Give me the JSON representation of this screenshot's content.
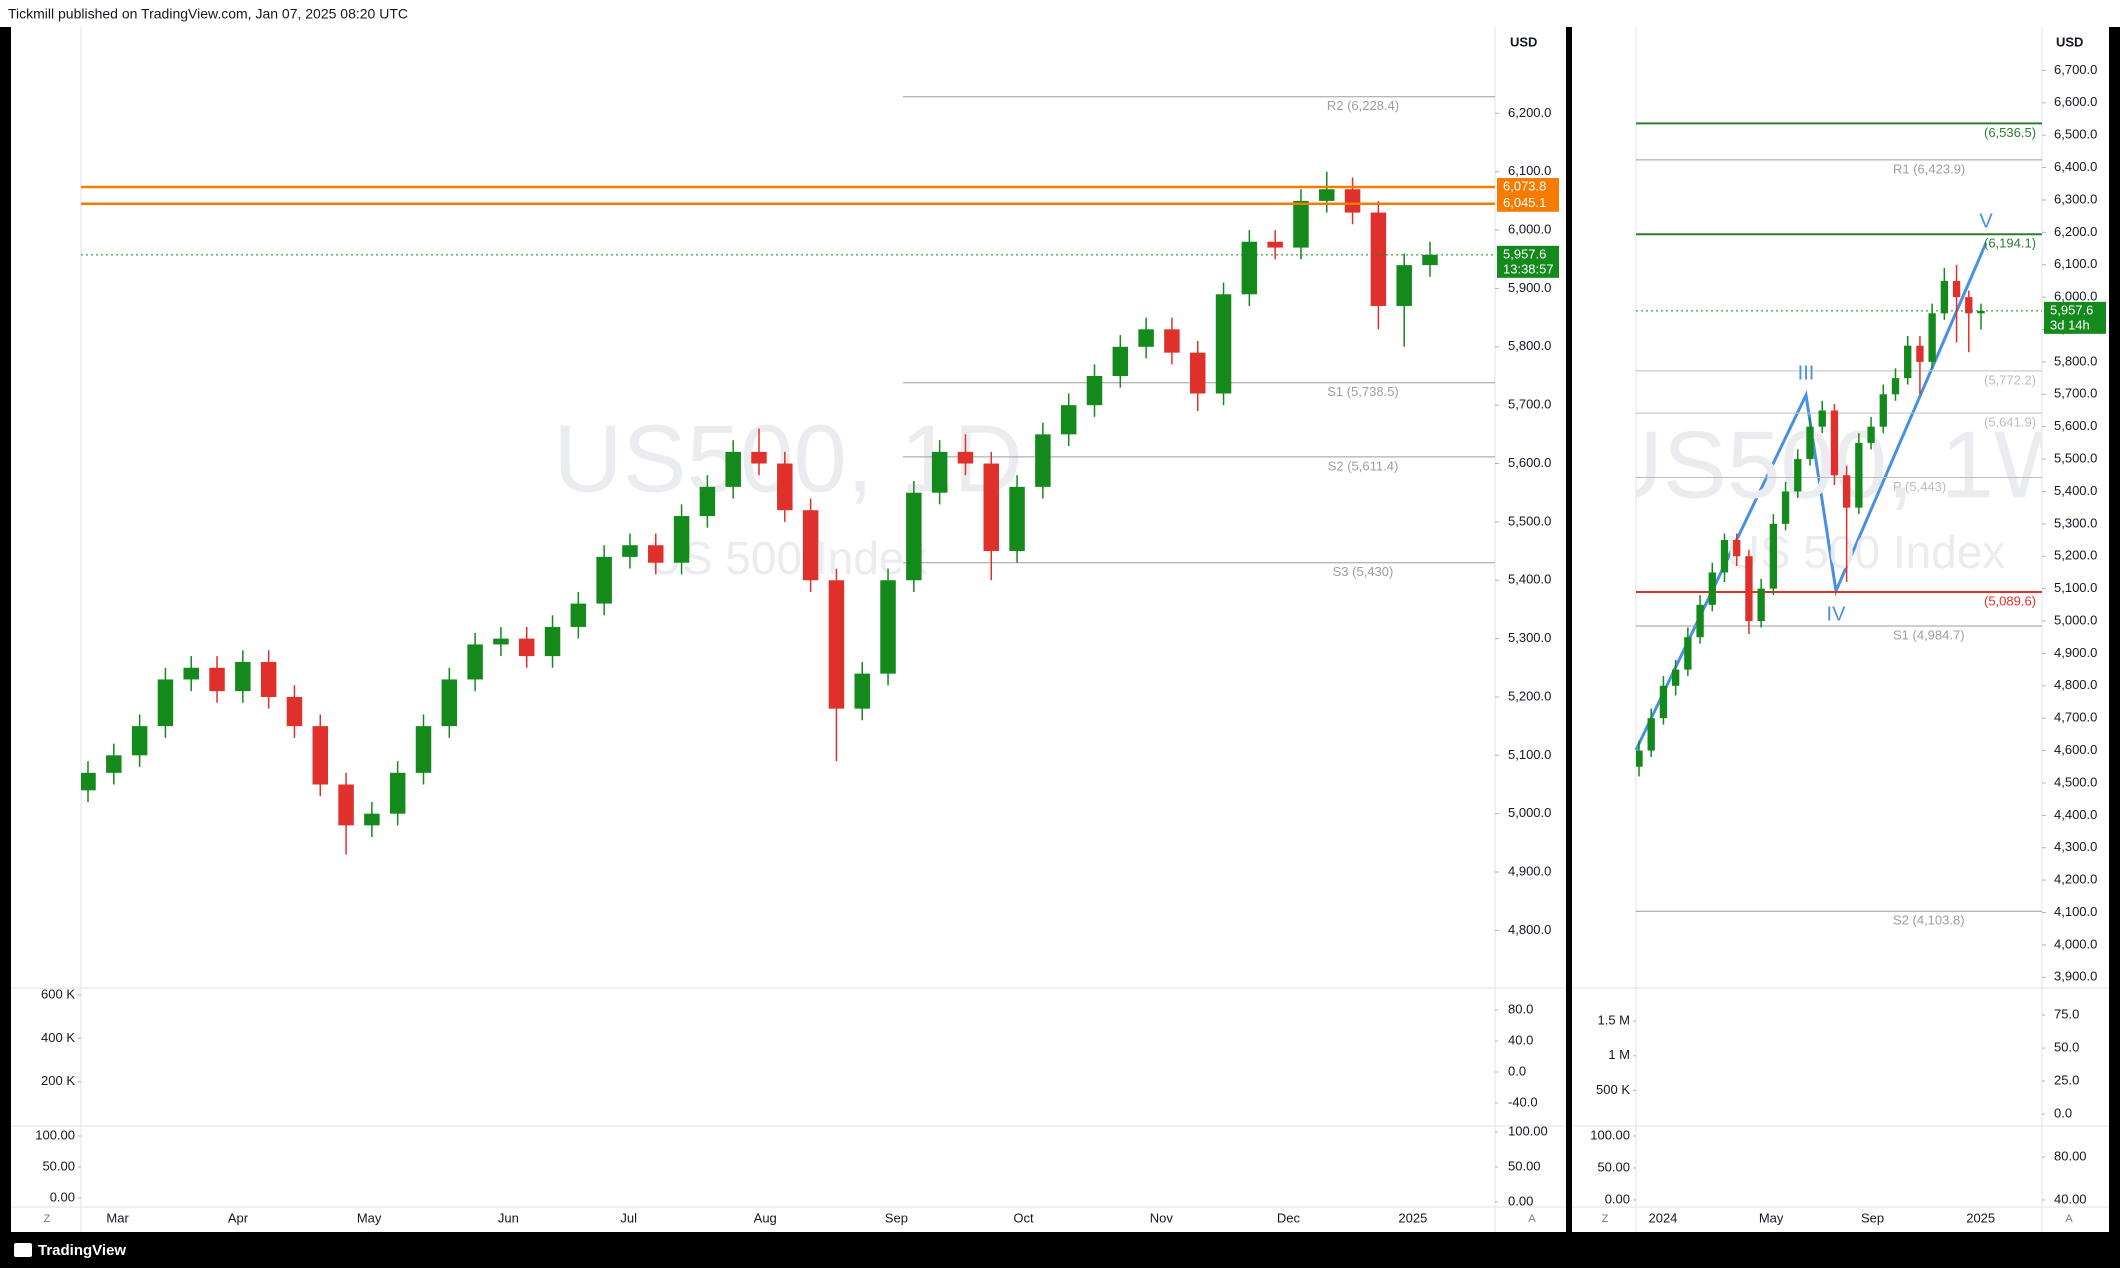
{
  "header": {
    "publisher": "Tickmill published on TradingView.com, Jan 07, 2025 08:20 UTC"
  },
  "footer": {
    "brand": "TradingView"
  },
  "left_chart": {
    "watermark_symbol": "US500, 1D",
    "watermark_name": "US 500 Index",
    "currency": "USD",
    "scale_buttons": [
      "Z",
      "A"
    ],
    "ylim": [
      4703,
      6348
    ],
    "yticks": [
      {
        "value": 4800,
        "label": "4,800.0"
      },
      {
        "value": 4900,
        "label": "4,900.0"
      },
      {
        "value": 5000,
        "label": "5,000.0"
      },
      {
        "value": 5100,
        "label": "5,100.0"
      },
      {
        "value": 5200,
        "label": "5,200.0"
      },
      {
        "value": 5300,
        "label": "5,300.0"
      },
      {
        "value": 5400,
        "label": "5,400.0"
      },
      {
        "value": 5500,
        "label": "5,500.0"
      },
      {
        "value": 5600,
        "label": "5,600.0"
      },
      {
        "value": 5700,
        "label": "5,700.0"
      },
      {
        "value": 5800,
        "label": "5,800.0"
      },
      {
        "value": 5900,
        "label": "5,900.0"
      },
      {
        "value": 6000,
        "label": "6,000.0"
      },
      {
        "value": 6100,
        "label": "6,100.0"
      },
      {
        "value": 6200,
        "label": "6,200.0"
      }
    ],
    "time_labels": [
      "Mar",
      "Apr",
      "May",
      "Jun",
      "Jul",
      "Aug",
      "Sep",
      "Oct",
      "Nov",
      "Dec",
      "2025"
    ],
    "levels": [
      {
        "label": "R2 (6,228.4)",
        "value": 6228.4,
        "color": "#9e9e9e"
      },
      {
        "label": "S1 (5,738.5)",
        "value": 5738.5,
        "color": "#9e9e9e"
      },
      {
        "label": "S2 (5,611.4)",
        "value": 5611.4,
        "color": "#9e9e9e"
      },
      {
        "label": "S3 (5,430)",
        "value": 5430,
        "color": "#9e9e9e"
      }
    ],
    "tags": [
      {
        "label": "6,073.8",
        "value": 6073.8,
        "color": "#f57c00"
      },
      {
        "label": "6,045.1",
        "value": 6045.1,
        "color": "#f57c00"
      },
      {
        "label": "5,957.6",
        "value": 5957.6,
        "color": "#138a1b",
        "sub": "13:38:57"
      }
    ],
    "candle_colors": {
      "up": "#138a1b",
      "down": "#e0302b"
    },
    "candles": [
      [
        5040,
        5090,
        5020,
        5070
      ],
      [
        5070,
        5120,
        5050,
        5100
      ],
      [
        5100,
        5170,
        5080,
        5150
      ],
      [
        5150,
        5250,
        5130,
        5230
      ],
      [
        5230,
        5270,
        5210,
        5250
      ],
      [
        5250,
        5270,
        5190,
        5210
      ],
      [
        5210,
        5280,
        5190,
        5260
      ],
      [
        5260,
        5280,
        5180,
        5200
      ],
      [
        5200,
        5220,
        5130,
        5150
      ],
      [
        5150,
        5170,
        5030,
        5050
      ],
      [
        5050,
        5070,
        4930,
        4980
      ],
      [
        4980,
        5020,
        4960,
        5000
      ],
      [
        5000,
        5090,
        4980,
        5070
      ],
      [
        5070,
        5170,
        5050,
        5150
      ],
      [
        5150,
        5250,
        5130,
        5230
      ],
      [
        5230,
        5310,
        5210,
        5290
      ],
      [
        5290,
        5320,
        5270,
        5300
      ],
      [
        5300,
        5320,
        5250,
        5270
      ],
      [
        5270,
        5340,
        5250,
        5320
      ],
      [
        5320,
        5380,
        5300,
        5360
      ],
      [
        5360,
        5460,
        5340,
        5440
      ],
      [
        5440,
        5480,
        5420,
        5460
      ],
      [
        5460,
        5480,
        5410,
        5430
      ],
      [
        5430,
        5530,
        5410,
        5510
      ],
      [
        5510,
        5580,
        5490,
        5560
      ],
      [
        5560,
        5640,
        5540,
        5620
      ],
      [
        5620,
        5660,
        5580,
        5600
      ],
      [
        5600,
        5620,
        5500,
        5520
      ],
      [
        5520,
        5540,
        5380,
        5400
      ],
      [
        5400,
        5420,
        5090,
        5180
      ],
      [
        5180,
        5260,
        5160,
        5240
      ],
      [
        5240,
        5420,
        5220,
        5400
      ],
      [
        5400,
        5570,
        5380,
        5550
      ],
      [
        5550,
        5640,
        5530,
        5620
      ],
      [
        5620,
        5650,
        5580,
        5600
      ],
      [
        5600,
        5620,
        5400,
        5450
      ],
      [
        5450,
        5580,
        5430,
        5560
      ],
      [
        5560,
        5670,
        5540,
        5650
      ],
      [
        5650,
        5720,
        5630,
        5700
      ],
      [
        5700,
        5770,
        5680,
        5750
      ],
      [
        5750,
        5820,
        5730,
        5800
      ],
      [
        5800,
        5850,
        5780,
        5830
      ],
      [
        5830,
        5850,
        5770,
        5790
      ],
      [
        5790,
        5810,
        5690,
        5720
      ],
      [
        5720,
        5910,
        5700,
        5890
      ],
      [
        5890,
        6000,
        5870,
        5980
      ],
      [
        5980,
        6000,
        5950,
        5970
      ],
      [
        5970,
        6070,
        5950,
        6050
      ],
      [
        6050,
        6100,
        6030,
        6070
      ],
      [
        6070,
        6090,
        6010,
        6030
      ],
      [
        6030,
        6050,
        5830,
        5870
      ],
      [
        5870,
        5960,
        5800,
        5940
      ],
      [
        5940,
        5980,
        5920,
        5957.6
      ]
    ],
    "volume": {
      "lim": [
        0,
        623000
      ],
      "ticks": [
        {
          "value": 600000,
          "label": "600 K"
        },
        {
          "value": 400000,
          "label": "400 K"
        },
        {
          "value": 200000,
          "label": "200 K"
        }
      ]
    },
    "oscillator": {
      "lim": [
        -68.4,
        105.8
      ],
      "ticks": [
        {
          "value": 80,
          "label": "80.0"
        },
        {
          "value": 40,
          "label": "40.0"
        },
        {
          "value": 0,
          "label": "0.0"
        },
        {
          "value": -40,
          "label": "-40.0"
        }
      ]
    },
    "stoch_left": {
      "lim": [
        -12.9,
        114.5
      ],
      "ticks": [
        {
          "value": 100,
          "label": "100.00"
        },
        {
          "value": 50,
          "label": "50.00"
        },
        {
          "value": 0,
          "label": "0.00"
        }
      ]
    },
    "stoch_right": {
      "lim": [
        -5.7,
        107
      ],
      "ticks": [
        {
          "value": 100,
          "label": "100.00"
        },
        {
          "value": 50,
          "label": "50.00"
        },
        {
          "value": 0,
          "label": "0.00"
        }
      ]
    }
  },
  "right_chart": {
    "watermark_symbol": "US500, 1W",
    "watermark_name": "US 500 Index",
    "currency": "USD",
    "scale_buttons": [
      "Z",
      "A"
    ],
    "ylim": [
      3870,
      6834
    ],
    "yticks": [
      {
        "value": 3900,
        "label": "3,900.0"
      },
      {
        "value": 4000,
        "label": "4,000.0"
      },
      {
        "value": 4100,
        "label": "4,100.0"
      },
      {
        "value": 4200,
        "label": "4,200.0"
      },
      {
        "value": 4300,
        "label": "4,300.0"
      },
      {
        "value": 4400,
        "label": "4,400.0"
      },
      {
        "value": 4500,
        "label": "4,500.0"
      },
      {
        "value": 4600,
        "label": "4,600.0"
      },
      {
        "value": 4700,
        "label": "4,700.0"
      },
      {
        "value": 4800,
        "label": "4,800.0"
      },
      {
        "value": 4900,
        "label": "4,900.0"
      },
      {
        "value": 5000,
        "label": "5,000.0"
      },
      {
        "value": 5100,
        "label": "5,100.0"
      },
      {
        "value": 5200,
        "label": "5,200.0"
      },
      {
        "value": 5300,
        "label": "5,300.0"
      },
      {
        "value": 5400,
        "label": "5,400.0"
      },
      {
        "value": 5500,
        "label": "5,500.0"
      },
      {
        "value": 5600,
        "label": "5,600.0"
      },
      {
        "value": 5700,
        "label": "5,700.0"
      },
      {
        "value": 5800,
        "label": "5,800.0"
      },
      {
        "value": 5900,
        "label": "5,900.0"
      },
      {
        "value": 6000,
        "label": "6,000.0"
      },
      {
        "value": 6100,
        "label": "6,100.0"
      },
      {
        "value": 6200,
        "label": "6,200.0"
      },
      {
        "value": 6300,
        "label": "6,300.0"
      },
      {
        "value": 6400,
        "label": "6,400.0"
      },
      {
        "value": 6500,
        "label": "6,500.0"
      },
      {
        "value": 6600,
        "label": "6,600.0"
      },
      {
        "value": 6700,
        "label": "6,700.0"
      }
    ],
    "time_labels": [
      "2024",
      "May",
      "Sep",
      "2025"
    ],
    "wave_labels": [
      "III",
      "IV",
      "V"
    ],
    "levels": [
      {
        "label": "(6,536.5)",
        "value": 6536.5,
        "color": "#2e7d32"
      },
      {
        "label": "R1 (6,423.9)",
        "value": 6423.9,
        "color": "#9e9e9e"
      },
      {
        "label": "(6,194.1)",
        "value": 6194.1,
        "color": "#2e7d32"
      },
      {
        "label": "(5,772.2)",
        "value": 5772.2,
        "color": "#bdbdbd"
      },
      {
        "label": "(5,641.9)",
        "value": 5641.9,
        "color": "#bdbdbd"
      },
      {
        "label": "P (5,443)",
        "value": 5443,
        "color": "#bdbdbd"
      },
      {
        "label": "(5,089.6)",
        "value": 5089.6,
        "color": "#e0302b"
      },
      {
        "label": "S1 (4,984.7)",
        "value": 4984.7,
        "color": "#9e9e9e"
      },
      {
        "label": "S2 (4,103.8)",
        "value": 4103.8,
        "color": "#9e9e9e"
      }
    ],
    "tags": [
      {
        "label": "5,957.6",
        "value": 5957.6,
        "color": "#138a1b",
        "sub": "3d 14h"
      }
    ],
    "candle_colors": {
      "up": "#138a1b",
      "down": "#e0302b"
    },
    "candles": [
      [
        4550,
        4630,
        4520,
        4600
      ],
      [
        4600,
        4730,
        4580,
        4700
      ],
      [
        4700,
        4830,
        4680,
        4800
      ],
      [
        4800,
        4880,
        4770,
        4850
      ],
      [
        4850,
        4980,
        4830,
        4950
      ],
      [
        4950,
        5080,
        4930,
        5050
      ],
      [
        5050,
        5180,
        5030,
        5150
      ],
      [
        5150,
        5270,
        5120,
        5250
      ],
      [
        5250,
        5270,
        5170,
        5200
      ],
      [
        5200,
        5220,
        4960,
        5000
      ],
      [
        5000,
        5130,
        4980,
        5100
      ],
      [
        5100,
        5330,
        5080,
        5300
      ],
      [
        5300,
        5430,
        5280,
        5400
      ],
      [
        5400,
        5530,
        5380,
        5500
      ],
      [
        5500,
        5630,
        5480,
        5600
      ],
      [
        5600,
        5680,
        5580,
        5650
      ],
      [
        5650,
        5670,
        5420,
        5450
      ],
      [
        5450,
        5480,
        5120,
        5350
      ],
      [
        5350,
        5580,
        5330,
        5550
      ],
      [
        5550,
        5630,
        5530,
        5600
      ],
      [
        5600,
        5730,
        5580,
        5700
      ],
      [
        5700,
        5780,
        5680,
        5750
      ],
      [
        5750,
        5880,
        5730,
        5850
      ],
      [
        5850,
        5880,
        5700,
        5800
      ],
      [
        5800,
        5980,
        5780,
        5950
      ],
      [
        5950,
        6090,
        5930,
        6050
      ],
      [
        6050,
        6100,
        5860,
        6000
      ],
      [
        6000,
        6020,
        5830,
        5950
      ],
      [
        5950,
        5980,
        5900,
        5957.6
      ]
    ],
    "volume": {
      "lim": [
        0,
        1950000
      ],
      "ticks": [
        {
          "value": 1500000,
          "label": "1.5 M"
        },
        {
          "value": 1000000,
          "label": "1 M"
        },
        {
          "value": 500000,
          "label": "500 K"
        }
      ]
    },
    "oscillator": {
      "lim": [
        -8.3,
        94
      ],
      "ticks": [
        {
          "value": 75,
          "label": "75.0"
        },
        {
          "value": 50,
          "label": "50.0"
        },
        {
          "value": 25,
          "label": "25.0"
        },
        {
          "value": 0,
          "label": "0.0"
        }
      ]
    },
    "stoch_left": {
      "lim": [
        -9.4,
        114
      ],
      "ticks": [
        {
          "value": 100,
          "label": "100.00"
        },
        {
          "value": 50,
          "label": "50.00"
        },
        {
          "value": 0,
          "label": "0.00"
        }
      ]
    },
    "stoch_right": {
      "lim": [
        34.4,
        107.9
      ],
      "ticks": [
        {
          "value": 80,
          "label": "80.00"
        },
        {
          "value": 40,
          "label": "40.00"
        }
      ]
    }
  }
}
